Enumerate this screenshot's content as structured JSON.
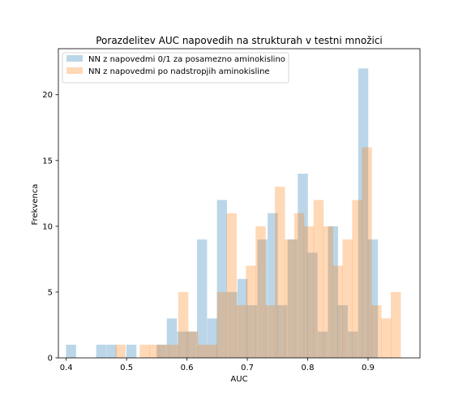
{
  "chart_data": {
    "type": "bar",
    "title": "Porazdelitev AUC napovedih na strukturah v testni množici",
    "xlabel": "AUC",
    "ylabel": "Frekvenca",
    "xlim": [
      0.387,
      0.986
    ],
    "ylim": [
      0,
      23.5
    ],
    "xticks": [
      0.4,
      0.5,
      0.6,
      0.7,
      0.8,
      0.9
    ],
    "yticks": [
      0,
      5,
      10,
      15,
      20
    ],
    "legend_position": "top-left",
    "grid": false,
    "series": [
      {
        "name": "NN z napovedmi 0/1 za posamezno aminokislino",
        "color": "#1f77b4",
        "opacity": 0.3,
        "bin_width": 0.0167,
        "bins": [
          {
            "x": 0.408,
            "count": 1
          },
          {
            "x": 0.458,
            "count": 1
          },
          {
            "x": 0.475,
            "count": 1
          },
          {
            "x": 0.508,
            "count": 1
          },
          {
            "x": 0.558,
            "count": 1
          },
          {
            "x": 0.575,
            "count": 3
          },
          {
            "x": 0.592,
            "count": 2
          },
          {
            "x": 0.608,
            "count": 2
          },
          {
            "x": 0.625,
            "count": 9
          },
          {
            "x": 0.642,
            "count": 3
          },
          {
            "x": 0.658,
            "count": 12
          },
          {
            "x": 0.675,
            "count": 5
          },
          {
            "x": 0.692,
            "count": 6
          },
          {
            "x": 0.708,
            "count": 4
          },
          {
            "x": 0.725,
            "count": 9
          },
          {
            "x": 0.742,
            "count": 11
          },
          {
            "x": 0.758,
            "count": 4
          },
          {
            "x": 0.775,
            "count": 9
          },
          {
            "x": 0.792,
            "count": 14
          },
          {
            "x": 0.808,
            "count": 8
          },
          {
            "x": 0.825,
            "count": 2
          },
          {
            "x": 0.842,
            "count": 10
          },
          {
            "x": 0.858,
            "count": 4
          },
          {
            "x": 0.875,
            "count": 2
          },
          {
            "x": 0.892,
            "count": 22
          },
          {
            "x": 0.908,
            "count": 9
          }
        ]
      },
      {
        "name": "NN z napovedmi po nadstropjih aminokisline",
        "color": "#ff7f0e",
        "opacity": 0.3,
        "bin_width": 0.0167,
        "bins": [
          {
            "x": 0.49,
            "count": 1
          },
          {
            "x": 0.53,
            "count": 1
          },
          {
            "x": 0.546,
            "count": 1
          },
          {
            "x": 0.562,
            "count": 1
          },
          {
            "x": 0.578,
            "count": 1
          },
          {
            "x": 0.594,
            "count": 5
          },
          {
            "x": 0.61,
            "count": 2
          },
          {
            "x": 0.626,
            "count": 1
          },
          {
            "x": 0.642,
            "count": 1
          },
          {
            "x": 0.658,
            "count": 5
          },
          {
            "x": 0.674,
            "count": 11
          },
          {
            "x": 0.69,
            "count": 4
          },
          {
            "x": 0.706,
            "count": 7
          },
          {
            "x": 0.722,
            "count": 10
          },
          {
            "x": 0.738,
            "count": 4
          },
          {
            "x": 0.754,
            "count": 13
          },
          {
            "x": 0.77,
            "count": 9
          },
          {
            "x": 0.786,
            "count": 11
          },
          {
            "x": 0.802,
            "count": 10
          },
          {
            "x": 0.818,
            "count": 12
          },
          {
            "x": 0.834,
            "count": 10
          },
          {
            "x": 0.85,
            "count": 7
          },
          {
            "x": 0.866,
            "count": 9
          },
          {
            "x": 0.882,
            "count": 12
          },
          {
            "x": 0.898,
            "count": 16
          },
          {
            "x": 0.914,
            "count": 4
          },
          {
            "x": 0.93,
            "count": 3
          },
          {
            "x": 0.946,
            "count": 5
          }
        ]
      }
    ]
  }
}
